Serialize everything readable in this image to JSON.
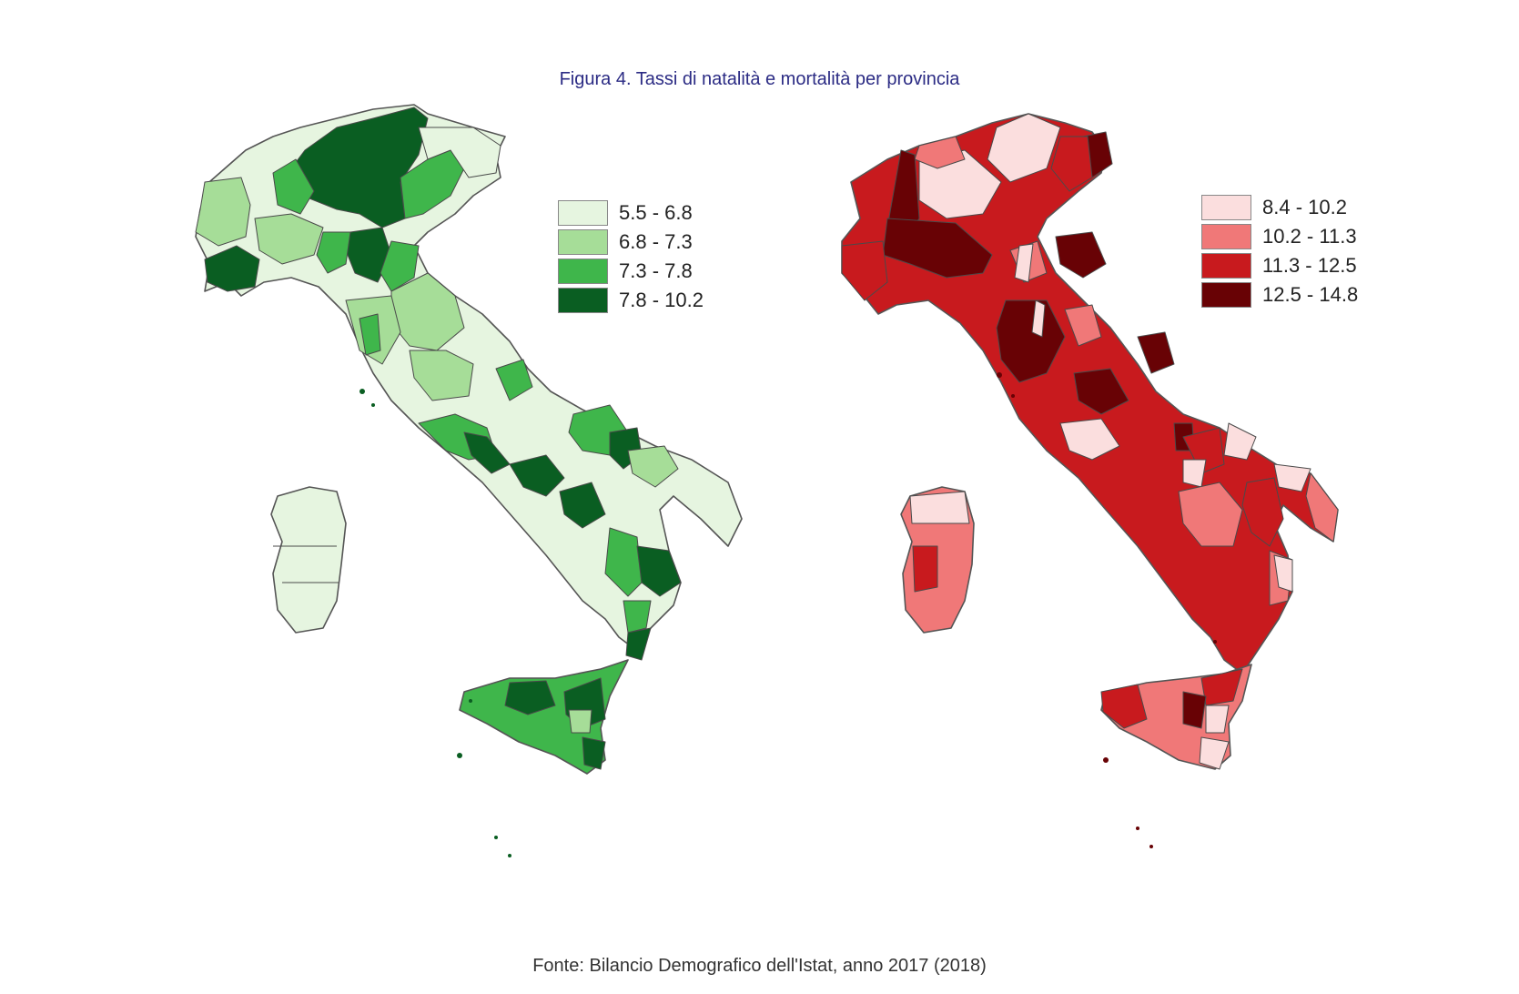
{
  "figure": {
    "title": "Figura 4. Tassi di natalità e mortalità per provincia",
    "source": "Fonte: Bilancio Demografico dell'Istat, anno 2017 (2018)"
  },
  "maps": [
    {
      "id": "natalita",
      "legend": [
        {
          "label": "5.5 - 6.8",
          "color": "#e6f5e0"
        },
        {
          "label": "6.8 - 7.3",
          "color": "#a6dd98"
        },
        {
          "label": "7.3 - 7.8",
          "color": "#3fb64b"
        },
        {
          "label": "7.8 - 10.2",
          "color": "#0a5e22"
        }
      ]
    },
    {
      "id": "mortalita",
      "legend": [
        {
          "label": "8.4 - 10.2",
          "color": "#fbdede"
        },
        {
          "label": "10.2 - 11.3",
          "color": "#f07878"
        },
        {
          "label": "11.3 - 12.5",
          "color": "#c81a1e"
        },
        {
          "label": "12.5 - 14.8",
          "color": "#680205"
        }
      ]
    }
  ]
}
